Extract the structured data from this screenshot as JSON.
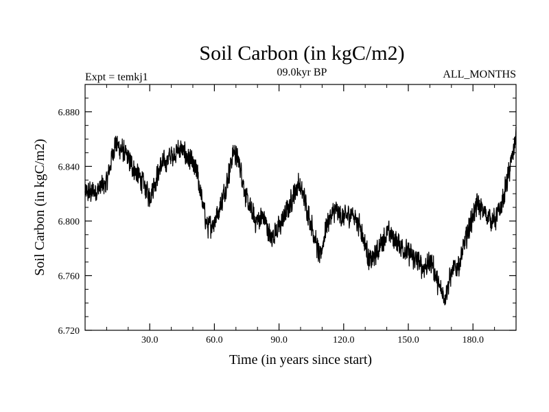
{
  "chart_data": {
    "type": "line",
    "title": "Soil Carbon (in kgC/m2)",
    "subtitle_left": "Expt = temkj1",
    "subtitle_center": "09.0kyr BP",
    "subtitle_right": "ALL_MONTHS",
    "xlabel": "Time (in years since start)",
    "ylabel": "Soil Carbon (in kgC/m2)",
    "xlim": [
      0,
      200
    ],
    "ylim": [
      6.72,
      6.9
    ],
    "x_ticks": [
      {
        "value": 30,
        "label": "30.0"
      },
      {
        "value": 60,
        "label": "60.0"
      },
      {
        "value": 90,
        "label": "90.0"
      },
      {
        "value": 120,
        "label": "120.0"
      },
      {
        "value": 150,
        "label": "150.0"
      },
      {
        "value": 180,
        "label": "180.0"
      }
    ],
    "y_ticks": [
      {
        "value": 6.72,
        "label": "6.720"
      },
      {
        "value": 6.76,
        "label": "6.760"
      },
      {
        "value": 6.8,
        "label": "6.800"
      },
      {
        "value": 6.84,
        "label": "6.840"
      },
      {
        "value": 6.88,
        "label": "6.880"
      }
    ],
    "series": [
      {
        "name": "Soil Carbon",
        "color": "#000000",
        "noise_amplitude": 0.01,
        "samples_per_year": 12,
        "x": [
          0,
          5,
          10,
          14,
          18,
          22,
          26,
          30,
          35,
          40,
          44,
          48,
          52,
          55,
          57,
          60,
          63,
          66,
          69,
          72,
          75,
          79,
          83,
          86,
          90,
          94,
          99,
          102,
          106,
          109,
          112,
          116,
          120,
          124,
          128,
          132,
          135,
          138,
          141,
          145,
          149,
          153,
          157,
          161,
          164,
          167,
          170,
          174,
          178,
          182,
          186,
          190,
          193,
          196,
          198,
          200
        ],
        "y": [
          6.82,
          6.822,
          6.828,
          6.858,
          6.85,
          6.84,
          6.83,
          6.818,
          6.84,
          6.848,
          6.853,
          6.846,
          6.835,
          6.808,
          6.795,
          6.8,
          6.812,
          6.83,
          6.852,
          6.84,
          6.815,
          6.8,
          6.803,
          6.788,
          6.795,
          6.808,
          6.828,
          6.815,
          6.792,
          6.772,
          6.798,
          6.808,
          6.802,
          6.806,
          6.795,
          6.77,
          6.775,
          6.786,
          6.792,
          6.784,
          6.778,
          6.772,
          6.766,
          6.77,
          6.752,
          6.745,
          6.762,
          6.77,
          6.795,
          6.812,
          6.805,
          6.8,
          6.81,
          6.83,
          6.845,
          6.862
        ]
      }
    ]
  }
}
